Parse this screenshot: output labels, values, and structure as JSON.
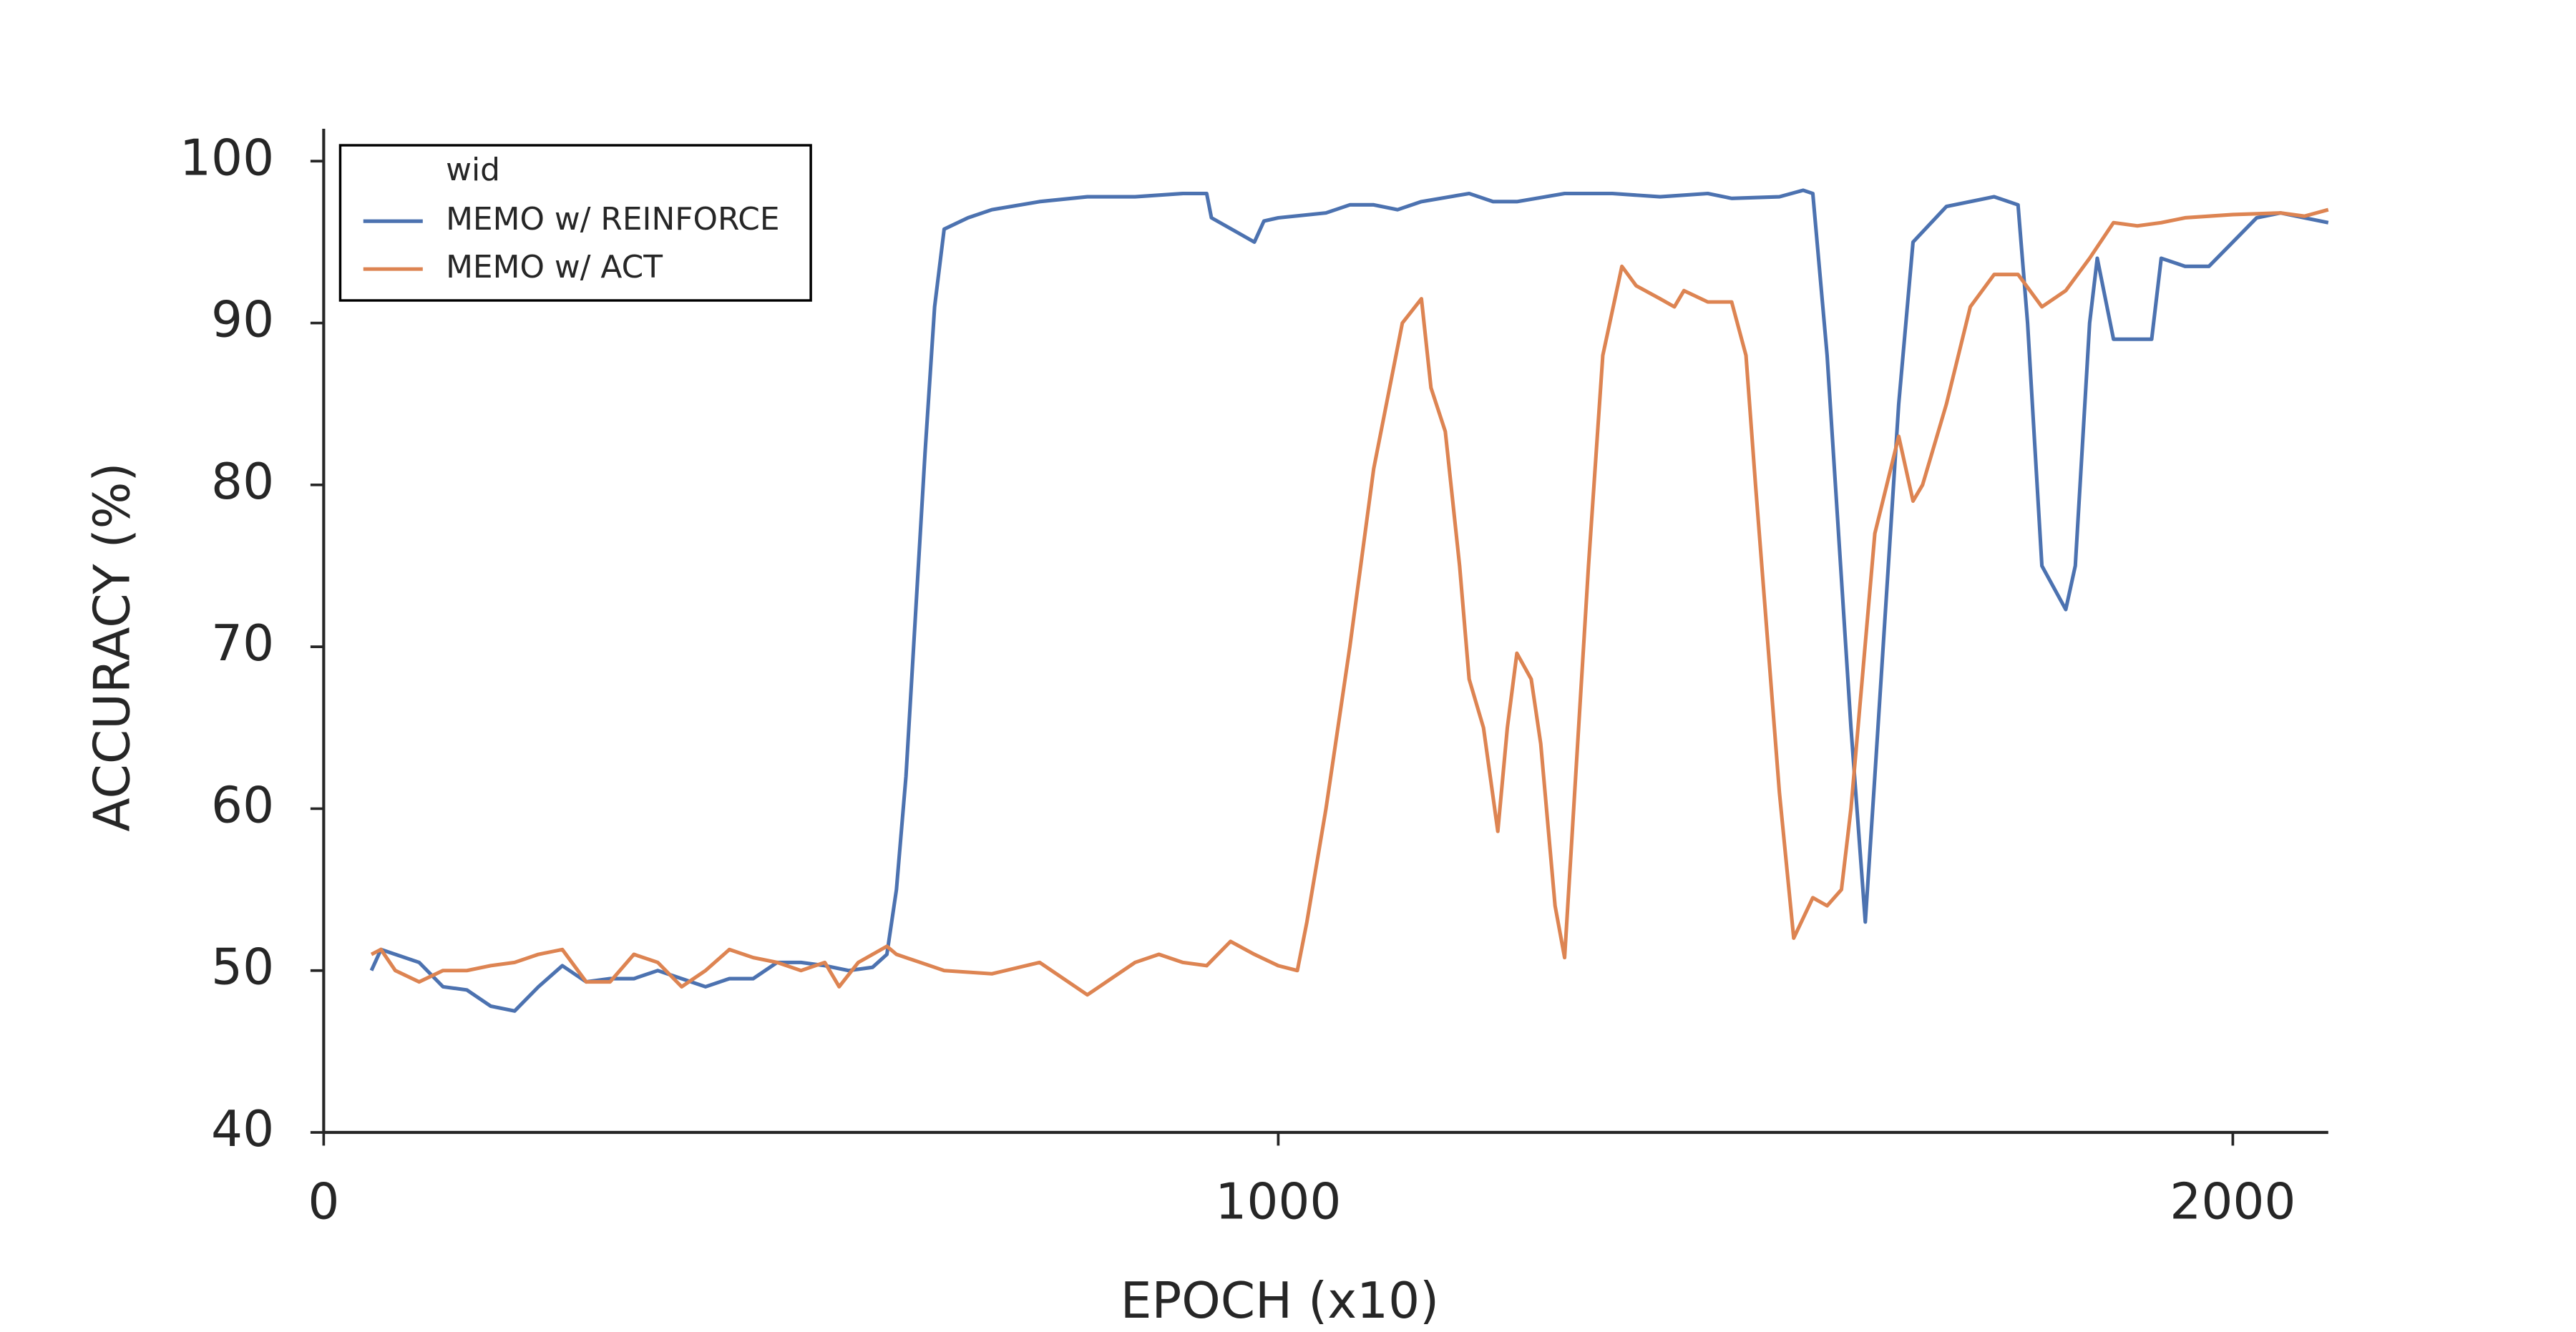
{
  "chart_data": {
    "type": "line",
    "xlabel": "EPOCH (x10)",
    "ylabel": "ACCURACY (%)",
    "legend_title": "wid",
    "legend": "upper left",
    "grid": false,
    "xlim": [
      0,
      2100
    ],
    "xticks": [
      0,
      1000,
      2000
    ],
    "ylim": [
      40,
      102
    ],
    "yticks": [
      40,
      50,
      60,
      70,
      80,
      90,
      100
    ],
    "series": [
      {
        "name": "MEMO w/ REINFORCE",
        "color": "#4c72b0",
        "x": [
          50,
          60,
          100,
          125,
          150,
          175,
          200,
          225,
          250,
          275,
          300,
          325,
          350,
          375,
          400,
          425,
          450,
          475,
          500,
          525,
          550,
          575,
          590,
          600,
          610,
          620,
          630,
          640,
          650,
          675,
          700,
          750,
          800,
          850,
          900,
          925,
          930,
          960,
          975,
          985,
          1000,
          1050,
          1075,
          1100,
          1125,
          1150,
          1200,
          1225,
          1250,
          1300,
          1350,
          1400,
          1450,
          1475,
          1525,
          1550,
          1560,
          1575,
          1600,
          1615,
          1625,
          1650,
          1665,
          1700,
          1750,
          1775,
          1785,
          1800,
          1825,
          1835,
          1850,
          1858,
          1875,
          1900,
          1915,
          1925,
          1950,
          1975,
          2000,
          2025,
          2050,
          2075,
          2100
        ],
        "values": [
          50,
          51.3,
          50.5,
          49,
          48.8,
          47.8,
          47.5,
          49,
          50.3,
          49.3,
          49.5,
          49.5,
          50,
          49.5,
          49,
          49.5,
          49.5,
          50.5,
          50.5,
          50.3,
          50,
          50.2,
          51,
          55,
          62,
          72,
          82,
          91,
          95.8,
          96.5,
          97,
          97.5,
          97.8,
          97.8,
          98,
          98,
          96.5,
          95.5,
          95,
          96.3,
          96.5,
          96.8,
          97.3,
          97.3,
          97,
          97.5,
          98,
          97.5,
          97.5,
          98,
          98,
          97.8,
          98,
          97.7,
          97.8,
          98.2,
          98,
          88,
          65,
          53,
          62,
          85,
          95,
          97.2,
          97.8,
          97.3,
          90,
          75,
          72.3,
          75,
          90,
          94,
          89,
          89,
          89,
          94,
          93.5,
          93.5,
          95,
          96.5,
          96.8,
          96.5,
          96.2
        ]
      },
      {
        "name": "MEMO w/ ACT",
        "color": "#dd8452",
        "x": [
          50,
          60,
          75,
          100,
          125,
          150,
          175,
          200,
          225,
          250,
          275,
          300,
          325,
          350,
          375,
          400,
          425,
          450,
          475,
          500,
          525,
          540,
          560,
          590,
          600,
          625,
          650,
          700,
          750,
          800,
          825,
          850,
          875,
          900,
          925,
          950,
          975,
          1000,
          1020,
          1030,
          1050,
          1075,
          1100,
          1120,
          1130,
          1150,
          1160,
          1175,
          1190,
          1200,
          1215,
          1230,
          1240,
          1250,
          1265,
          1275,
          1290,
          1300,
          1325,
          1340,
          1360,
          1375,
          1400,
          1415,
          1425,
          1450,
          1475,
          1490,
          1500,
          1525,
          1540,
          1560,
          1575,
          1590,
          1600,
          1625,
          1650,
          1665,
          1675,
          1700,
          1725,
          1750,
          1775,
          1800,
          1825,
          1850,
          1875,
          1900,
          1925,
          1950,
          2000,
          2050,
          2075,
          2100
        ],
        "values": [
          51,
          51.3,
          50,
          49.3,
          50,
          50,
          50.3,
          50.5,
          51,
          51.3,
          49.3,
          49.3,
          51,
          50.5,
          49,
          50,
          51.3,
          50.8,
          50.5,
          50,
          50.5,
          49,
          50.5,
          51.5,
          51,
          50.5,
          50,
          49.8,
          50.5,
          48.5,
          49.5,
          50.5,
          51,
          50.5,
          50.3,
          51.8,
          51,
          50.3,
          50,
          53,
          60,
          70,
          81,
          87,
          90,
          91.5,
          86,
          83.3,
          75,
          68,
          65,
          58.6,
          65,
          69.6,
          68,
          64,
          54,
          50.8,
          75,
          88,
          93.5,
          92.3,
          91.5,
          91,
          92,
          91.3,
          91.3,
          88,
          80,
          61,
          52,
          54.5,
          54,
          55,
          60,
          77,
          83,
          79,
          80,
          85,
          91,
          93,
          93,
          91,
          92,
          94,
          96.2,
          96,
          96.2,
          96.5,
          96.7,
          96.8,
          96.6,
          97
        ]
      }
    ]
  }
}
